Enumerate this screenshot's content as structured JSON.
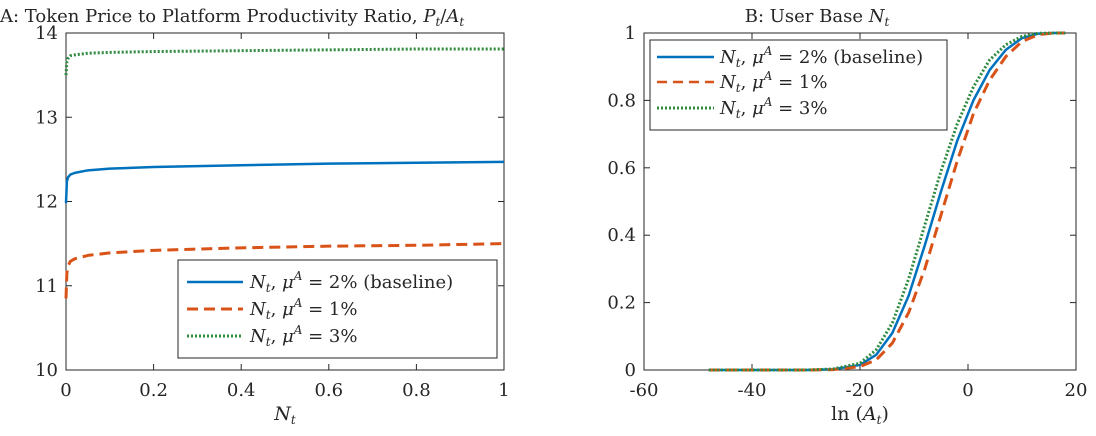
{
  "chart_data": [
    {
      "type": "line",
      "title": "A: Token Price to Platform Productivity Ratio, P_t/A_t",
      "xlabel": "N_t",
      "ylabel": "",
      "xlim": [
        0,
        1
      ],
      "ylim": [
        10,
        14
      ],
      "xticks": [
        "0",
        "0.2",
        "0.4",
        "0.6",
        "0.8",
        "1"
      ],
      "yticks": [
        "10",
        "11",
        "12",
        "13",
        "14"
      ],
      "grid": false,
      "legend": "bottom-right",
      "series": [
        {
          "name": "N_t, μ^A = 2% (baseline)",
          "color": "#0072bd",
          "style": "solid",
          "x": [
            0,
            0.002,
            0.005,
            0.01,
            0.02,
            0.05,
            0.1,
            0.2,
            0.4,
            0.6,
            0.8,
            1.0
          ],
          "y": [
            11.98,
            12.24,
            12.29,
            12.32,
            12.34,
            12.37,
            12.39,
            12.41,
            12.43,
            12.45,
            12.46,
            12.47
          ]
        },
        {
          "name": "N_t, μ^A = 1%",
          "color": "#d95319",
          "style": "dashed",
          "x": [
            0,
            0.002,
            0.005,
            0.01,
            0.02,
            0.05,
            0.1,
            0.2,
            0.4,
            0.6,
            0.8,
            1.0
          ],
          "y": [
            10.85,
            11.15,
            11.24,
            11.29,
            11.32,
            11.36,
            11.39,
            11.42,
            11.45,
            11.47,
            11.48,
            11.5
          ]
        },
        {
          "name": "N_t, μ^A = 3%",
          "color": "#2e8b3e",
          "style": "dotted",
          "x": [
            0,
            0.002,
            0.005,
            0.01,
            0.02,
            0.05,
            0.1,
            0.2,
            0.4,
            0.6,
            0.8,
            1.0
          ],
          "y": [
            13.5,
            13.66,
            13.7,
            13.73,
            13.74,
            13.76,
            13.77,
            13.78,
            13.79,
            13.8,
            13.81,
            13.81
          ]
        }
      ]
    },
    {
      "type": "line",
      "title": "B: User Base N_t",
      "xlabel": "ln(A_t)",
      "ylabel": "",
      "xlim": [
        -60,
        20
      ],
      "ylim": [
        0,
        1
      ],
      "xticks": [
        "-60",
        "-40",
        "-20",
        "0",
        "20"
      ],
      "yticks": [
        "0",
        "0.2",
        "0.4",
        "0.6",
        "0.8",
        "1"
      ],
      "grid": false,
      "legend": "top-left",
      "series": [
        {
          "name": "N_t, μ^A = 2% (baseline)",
          "color": "#0072bd",
          "style": "solid",
          "x": [
            -48,
            -30,
            -25,
            -20,
            -17,
            -14,
            -11,
            -8,
            -5,
            -2,
            1,
            4,
            7,
            10,
            13,
            16,
            18
          ],
          "y": [
            0,
            0,
            0.002,
            0.015,
            0.045,
            0.11,
            0.22,
            0.37,
            0.53,
            0.68,
            0.8,
            0.89,
            0.95,
            0.985,
            0.998,
            1,
            1
          ]
        },
        {
          "name": "N_t, μ^A = 1%",
          "color": "#d95319",
          "style": "dashed",
          "x": [
            -48,
            -30,
            -25,
            -20,
            -17,
            -14,
            -11,
            -8,
            -5,
            -2,
            1,
            4,
            7,
            10,
            13,
            16,
            18
          ],
          "y": [
            0,
            0,
            0.001,
            0.01,
            0.03,
            0.08,
            0.17,
            0.3,
            0.46,
            0.62,
            0.76,
            0.86,
            0.93,
            0.975,
            0.995,
            1,
            1
          ]
        },
        {
          "name": "N_t, μ^A = 3%",
          "color": "#2e8b3e",
          "style": "dotted",
          "x": [
            -48,
            -30,
            -25,
            -20,
            -17,
            -14,
            -11,
            -8,
            -5,
            -2,
            1,
            4,
            7,
            10,
            13,
            16,
            18
          ],
          "y": [
            0,
            0,
            0.003,
            0.02,
            0.06,
            0.14,
            0.27,
            0.43,
            0.59,
            0.73,
            0.84,
            0.92,
            0.965,
            0.99,
            0.999,
            1,
            1
          ]
        }
      ]
    }
  ]
}
